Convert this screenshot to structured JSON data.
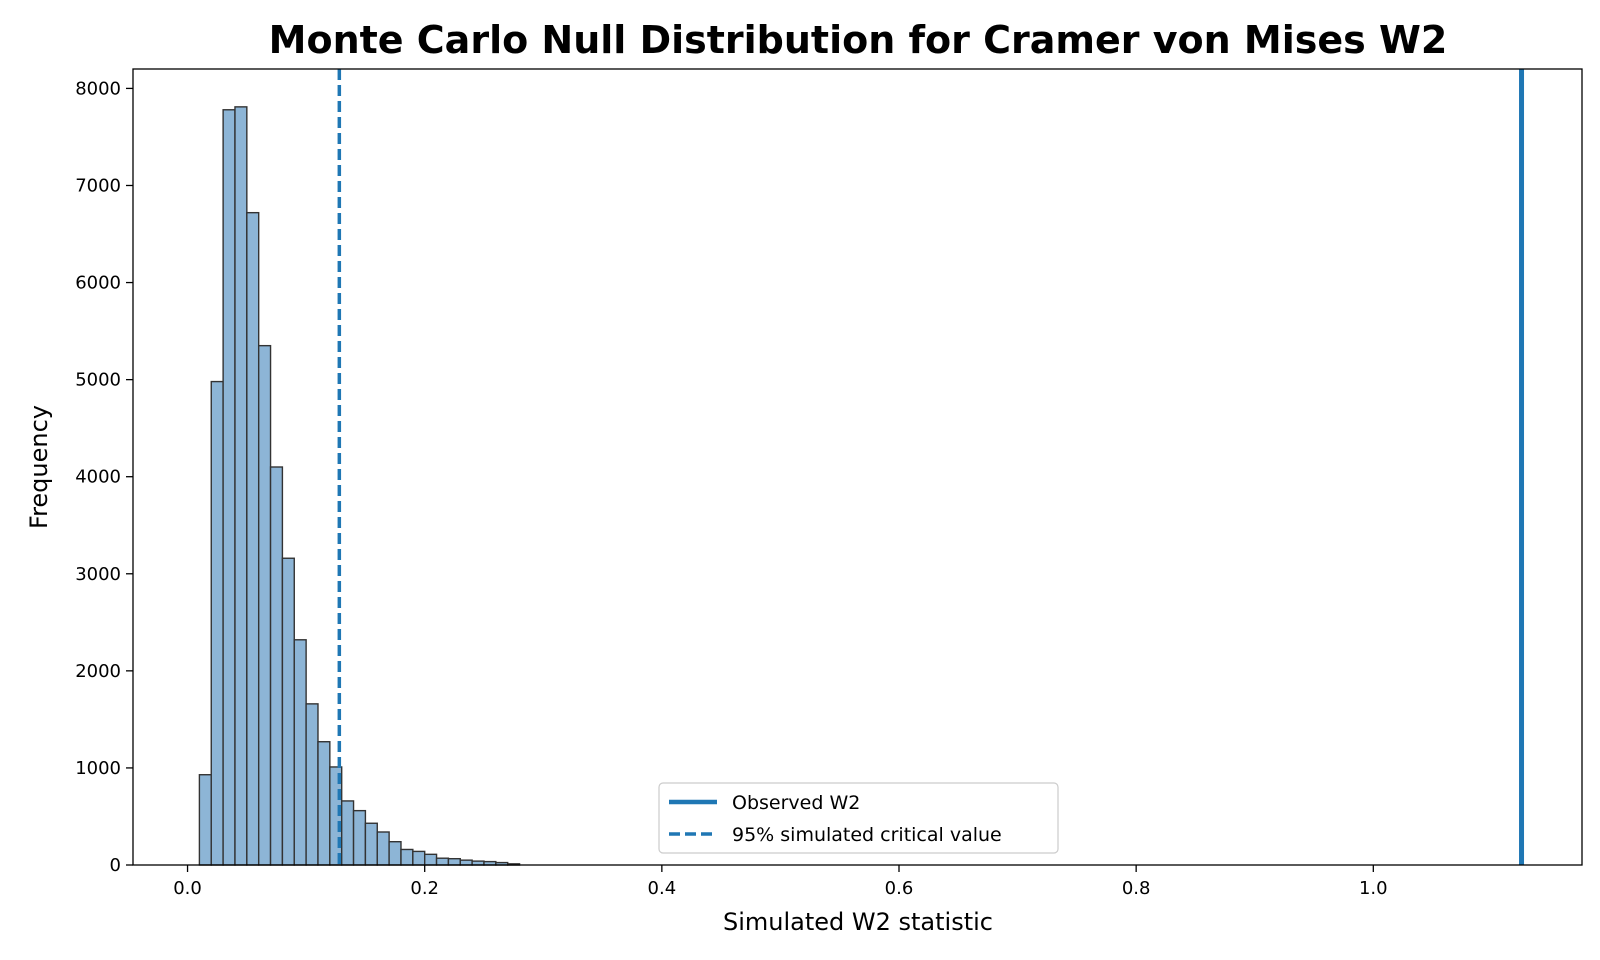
{
  "chart_data": {
    "type": "bar",
    "title": "Monte Carlo Null Distribution for Cramer von Mises W2",
    "xlabel": "Simulated W2 statistic",
    "ylabel": "Frequency",
    "xlim": [
      -0.046,
      1.176
    ],
    "ylim": [
      0,
      8200
    ],
    "xticks": [
      0.0,
      0.2,
      0.4,
      0.6,
      0.8,
      1.0
    ],
    "xtick_labels": [
      "0.0",
      "0.2",
      "0.4",
      "0.6",
      "0.8",
      "1.0"
    ],
    "yticks": [
      0,
      1000,
      2000,
      3000,
      4000,
      5000,
      6000,
      7000,
      8000
    ],
    "ytick_labels": [
      "0",
      "1000",
      "2000",
      "3000",
      "4000",
      "5000",
      "6000",
      "7000",
      "8000"
    ],
    "bin_width": 0.01,
    "bin_starts": [
      0.01,
      0.02,
      0.03,
      0.04,
      0.05,
      0.06,
      0.07,
      0.08,
      0.09,
      0.1,
      0.11,
      0.12,
      0.13,
      0.14,
      0.15,
      0.16,
      0.17,
      0.18,
      0.19,
      0.2,
      0.21,
      0.22,
      0.23,
      0.24,
      0.25,
      0.26,
      0.27
    ],
    "counts": [
      930,
      4980,
      7780,
      7810,
      6720,
      5350,
      4100,
      3160,
      2320,
      1660,
      1270,
      1010,
      660,
      560,
      430,
      340,
      240,
      160,
      140,
      110,
      70,
      65,
      50,
      40,
      35,
      25,
      12
    ],
    "bar_color": "#8db5d6",
    "bar_edge_color": "#333333",
    "observed_value": 1.125,
    "critical_value": 0.128,
    "line_color": "#1f77b4",
    "legend": {
      "position": "lower-center",
      "entries": [
        {
          "label": "Observed W2",
          "style": "solid"
        },
        {
          "label": "95% simulated critical value",
          "style": "dashed"
        }
      ]
    },
    "grid": false
  }
}
